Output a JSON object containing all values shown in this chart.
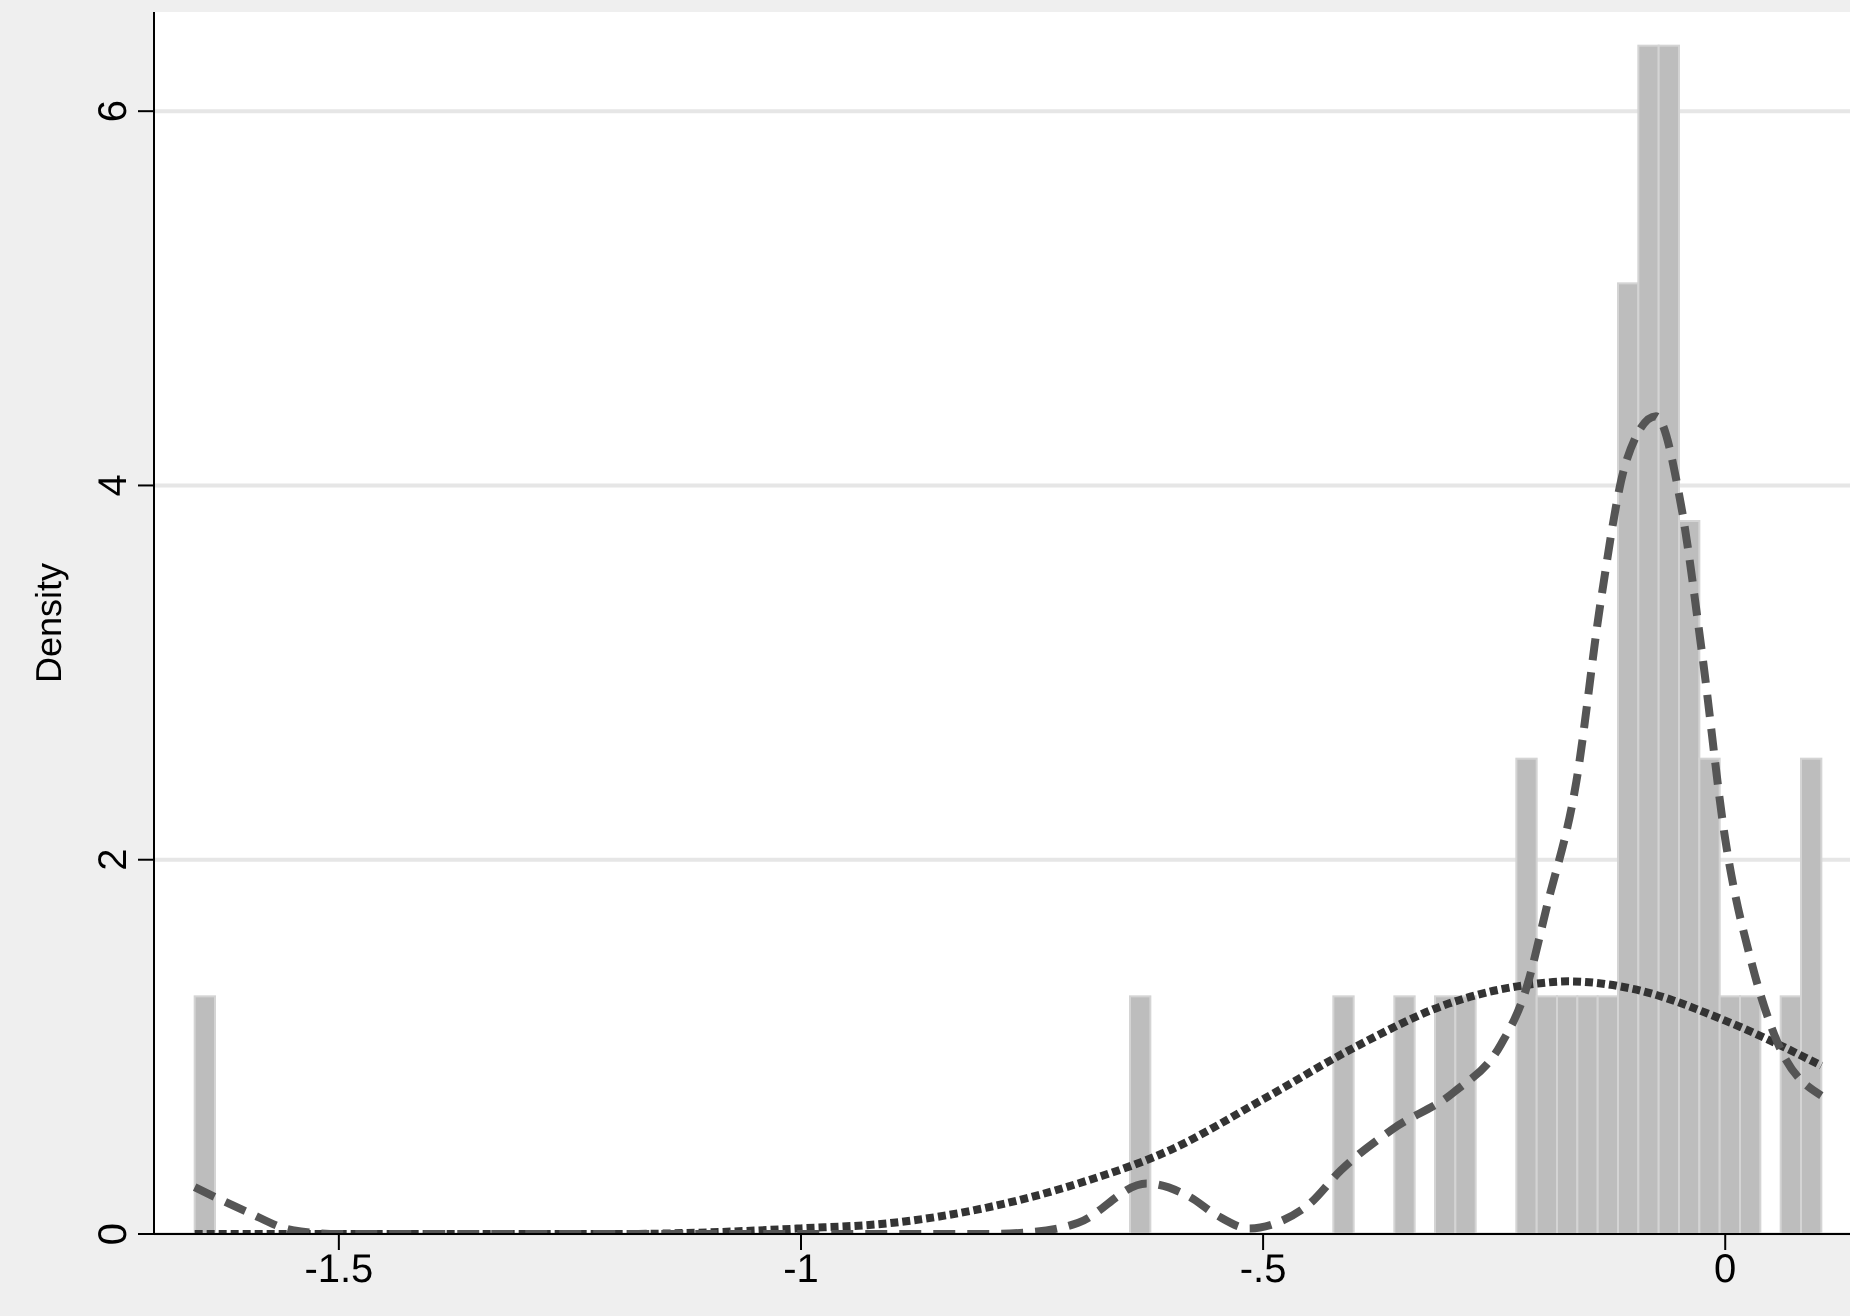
{
  "chart_data": {
    "type": "histogram",
    "ylabel": "Density",
    "bins": [
      -1.656,
      -1.634,
      -1.612,
      -1.59,
      -1.568,
      -1.546,
      -1.524,
      -1.502,
      -1.48,
      -1.458,
      -1.436,
      -1.414,
      -1.392,
      -1.37,
      -1.348,
      -1.326,
      -1.304,
      -1.282,
      -1.26,
      -1.238,
      -1.216,
      -1.194,
      -1.172,
      -1.15,
      -1.128,
      -1.106,
      -1.084,
      -1.062,
      -1.04,
      -1.018,
      -0.996,
      -0.974,
      -0.952,
      -0.93,
      -0.908,
      -0.886,
      -0.864,
      -0.842,
      -0.82,
      -0.798,
      -0.776,
      -0.754,
      -0.732,
      -0.71,
      -0.688,
      -0.666,
      -0.644,
      -0.622,
      -0.6,
      -0.578,
      -0.556,
      -0.534,
      -0.512,
      -0.49,
      -0.468,
      -0.446,
      -0.424,
      -0.402,
      -0.38,
      -0.358,
      -0.336,
      -0.314,
      -0.292,
      -0.27,
      -0.248,
      -0.226,
      -0.204,
      -0.182,
      -0.16,
      -0.138,
      -0.116,
      -0.094,
      -0.072,
      -0.05,
      -0.028,
      -0.006,
      0.016,
      0.038,
      0.06,
      0.082,
      0.104
    ],
    "values": [
      1.27,
      0,
      0,
      0,
      0,
      0,
      0,
      0,
      0,
      0,
      0,
      0,
      0,
      0,
      0,
      0,
      0,
      0,
      0,
      0,
      0,
      0,
      0,
      0,
      0,
      0,
      0,
      0,
      0,
      0,
      0,
      0,
      0,
      0,
      0,
      0,
      0,
      0,
      0,
      0,
      0,
      0,
      0,
      0,
      0,
      0,
      1.27,
      0,
      0,
      0,
      0,
      0,
      0,
      0,
      0,
      0,
      1.27,
      0,
      0,
      1.27,
      0,
      1.27,
      1.27,
      0,
      0,
      2.54,
      1.27,
      1.27,
      1.27,
      1.27,
      5.08,
      6.35,
      6.35,
      3.81,
      2.54,
      1.27,
      1.27,
      0,
      1.27,
      2.54
    ],
    "color": "#bdbdbd",
    "series": [
      {
        "type": "line",
        "color": "#333333",
        "line_style": "dotted",
        "x": [
          -1.656,
          -1.2,
          -1.0,
          -0.9,
          -0.8,
          -0.7,
          -0.6,
          -0.5,
          -0.4,
          -0.3,
          -0.2,
          -0.17,
          -0.1,
          0,
          0.104
        ],
        "values": [
          0,
          0,
          0.03,
          0.06,
          0.14,
          0.27,
          0.45,
          0.72,
          1.0,
          1.23,
          1.34,
          1.35,
          1.31,
          1.14,
          0.9
        ]
      },
      {
        "type": "line",
        "color": "#555555",
        "line_style": "dashed",
        "x": [
          -1.656,
          -1.6,
          -1.55,
          -1.5,
          -0.8,
          -0.75,
          -0.7,
          -0.626,
          -0.58,
          -0.55,
          -0.515,
          -0.48,
          -0.45,
          -0.416,
          -0.36,
          -0.293,
          -0.243,
          -0.216,
          -0.193,
          -0.161,
          -0.135,
          -0.107,
          -0.075,
          -0.048,
          -0.025,
          0,
          0.029,
          0.056,
          0.104
        ],
        "values": [
          0.25,
          0.12,
          0.02,
          0,
          0,
          0.01,
          0.06,
          0.27,
          0.2,
          0.1,
          0.03,
          0.07,
          0.16,
          0.34,
          0.56,
          0.76,
          1.01,
          1.3,
          1.75,
          2.42,
          3.37,
          4.13,
          4.37,
          3.9,
          3.1,
          2.11,
          1.44,
          1.03,
          0.74
        ]
      }
    ],
    "xlim": [
      -1.7,
      0.135
    ],
    "ylim": [
      0,
      6.53
    ],
    "xticks": [
      -1.5,
      -1,
      {
        "value": -0.5,
        "label": "-.5"
      },
      0
    ],
    "yticks": [
      0,
      2,
      4,
      6
    ],
    "grid": "y"
  }
}
